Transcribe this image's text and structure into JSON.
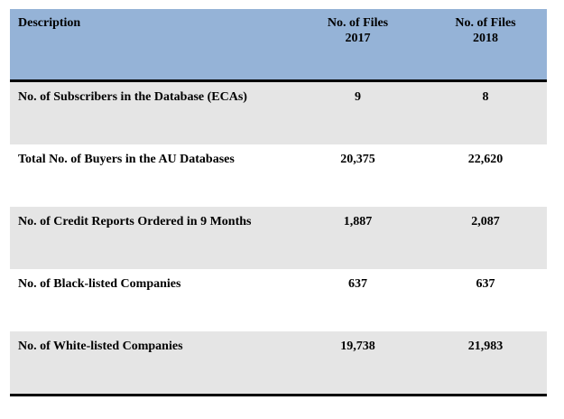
{
  "table": {
    "header": {
      "description": "Description",
      "col_2017": [
        "No. of Files",
        "2017"
      ],
      "col_2018": [
        "No. of Files",
        "2018"
      ]
    },
    "rows": [
      {
        "description": "No.  of Subscribers in the Database (ECAs)",
        "v2017": "9",
        "v2018": "8",
        "shaded": true
      },
      {
        "description": "Total No. of Buyers in the AU Databases",
        "v2017": "20,375",
        "v2018": "22,620",
        "shaded": false
      },
      {
        "description": "No.  of Credit Reports Ordered in 9 Months",
        "v2017": "1,887",
        "v2018": "2,087",
        "shaded": true
      },
      {
        "description": "No.  of Black-listed Companies",
        "v2017": "637",
        "v2018": "637",
        "shaded": false
      },
      {
        "description": "No.  of White-listed Companies",
        "v2017": "19,738",
        "v2018": "21,983",
        "shaded": true
      }
    ]
  }
}
